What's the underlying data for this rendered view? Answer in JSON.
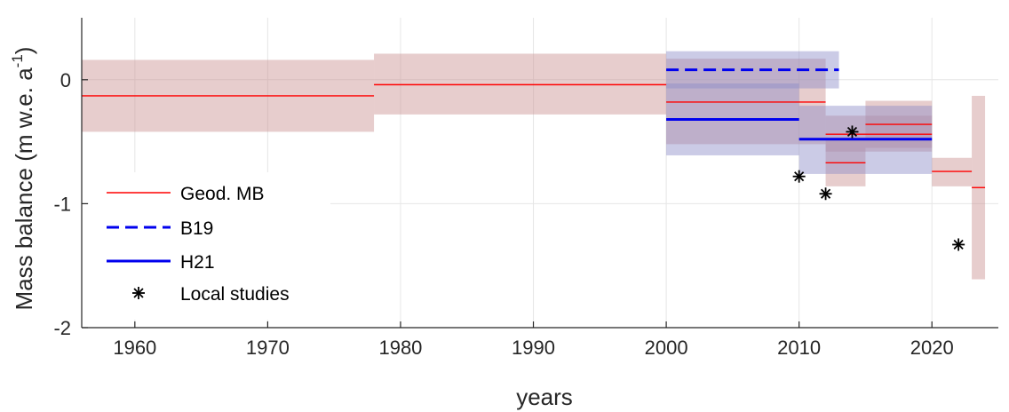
{
  "chart_data": {
    "type": "line",
    "xlabel": "years",
    "ylabel": "Mass balance (m w.e. a",
    "ylabel_sup": "-1",
    "ylabel_close": ")",
    "xlim": [
      1956,
      2025
    ],
    "ylim": [
      -2,
      0.5
    ],
    "xticks": [
      1960,
      1970,
      1980,
      1990,
      2000,
      2010,
      2020
    ],
    "xtick_labels": [
      "1960",
      "1970",
      "1980",
      "1990",
      "2000",
      "2010",
      "2020"
    ],
    "yticks": [
      -2,
      -1,
      0
    ],
    "ytick_labels": [
      "-2",
      "-1",
      "0"
    ],
    "grid": true,
    "legend_position": "lower-left",
    "legend": [
      {
        "key": "geod",
        "label": "Geod. MB"
      },
      {
        "key": "b19",
        "label": "B19"
      },
      {
        "key": "h21",
        "label": "H21"
      },
      {
        "key": "local",
        "label": "Local studies"
      }
    ],
    "colors": {
      "geod_line": "#ff0000",
      "geod_band": "#c99090",
      "blue_line": "#0000ee",
      "blue_band": "#8c8cc8",
      "marker": "#000000",
      "grid": "#e6e6e6",
      "axis": "#262626"
    },
    "series": [
      {
        "key": "geod",
        "name": "Geod. MB",
        "segments": [
          {
            "x0": 1956,
            "x1": 1978,
            "value": -0.13,
            "lower": -0.42,
            "upper": 0.16
          },
          {
            "x0": 1978,
            "x1": 2000,
            "value": -0.04,
            "lower": -0.28,
            "upper": 0.21
          },
          {
            "x0": 2000,
            "x1": 2012,
            "value": -0.18,
            "lower": -0.52,
            "upper": 0.17
          },
          {
            "x0": 2012,
            "x1": 2015,
            "value": -0.67,
            "lower": -0.86,
            "upper": -0.47
          },
          {
            "x0": 2012,
            "x1": 2020,
            "value": -0.44,
            "lower": -0.58,
            "upper": -0.29
          },
          {
            "x0": 2015,
            "x1": 2020,
            "value": -0.36,
            "lower": -0.55,
            "upper": -0.17
          },
          {
            "x0": 2020,
            "x1": 2023,
            "value": -0.74,
            "lower": -0.86,
            "upper": -0.63
          },
          {
            "x0": 2023,
            "x1": 2024,
            "value": -0.87,
            "lower": -1.61,
            "upper": -0.13
          }
        ]
      },
      {
        "key": "b19",
        "name": "B19",
        "segments": [
          {
            "x0": 2000,
            "x1": 2013,
            "value": 0.08,
            "lower": -0.07,
            "upper": 0.23
          }
        ]
      },
      {
        "key": "h21",
        "name": "H21",
        "segments": [
          {
            "x0": 2000,
            "x1": 2010,
            "value": -0.32,
            "lower": -0.61,
            "upper": -0.03
          },
          {
            "x0": 2010,
            "x1": 2020,
            "value": -0.48,
            "lower": -0.76,
            "upper": -0.21
          }
        ]
      },
      {
        "key": "local",
        "name": "Local studies",
        "points": [
          {
            "x": 2010,
            "y": -0.78
          },
          {
            "x": 2012,
            "y": -0.92
          },
          {
            "x": 2014,
            "y": -0.42
          },
          {
            "x": 2022,
            "y": -1.33
          }
        ]
      }
    ]
  }
}
